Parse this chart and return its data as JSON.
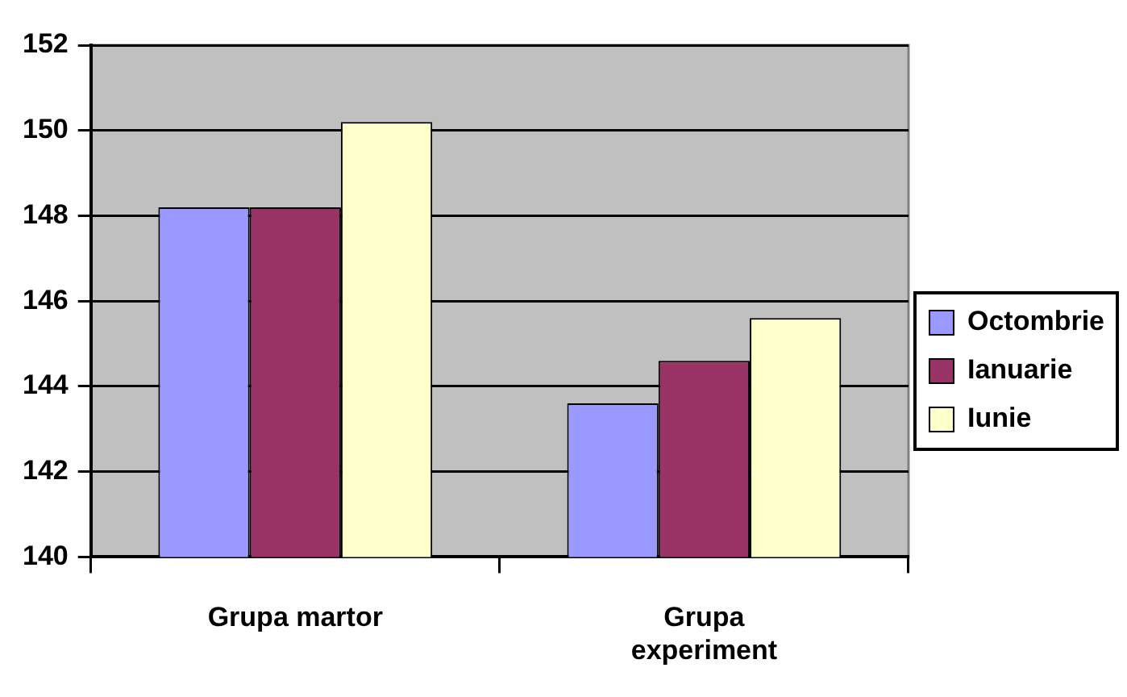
{
  "chart_data": {
    "type": "bar",
    "categories": [
      "Grupa martor",
      "Grupa experiment"
    ],
    "series": [
      {
        "name": "Octombrie",
        "color": "#9999ff",
        "values": [
          148.2,
          143.6
        ]
      },
      {
        "name": "Ianuarie",
        "color": "#993366",
        "values": [
          148.2,
          144.6
        ]
      },
      {
        "name": "Iunie",
        "color": "#ffffcc",
        "values": [
          150.2,
          145.6
        ]
      }
    ],
    "ylim": [
      140,
      152
    ],
    "yticks": [
      140,
      142,
      144,
      146,
      148,
      150,
      152
    ],
    "grid": "y",
    "legend": "right"
  }
}
